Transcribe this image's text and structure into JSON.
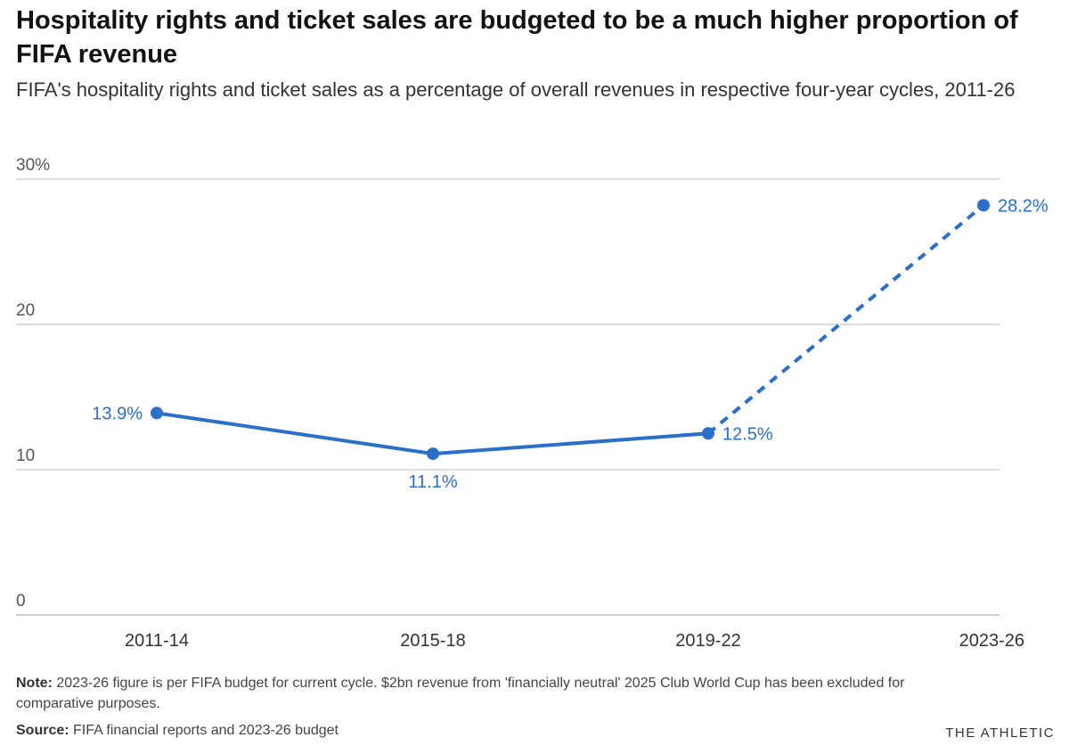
{
  "chart_data": {
    "type": "line",
    "title": "Hospitality rights and ticket sales are budgeted to be a much higher proportion of FIFA revenue",
    "subtitle": "FIFA's hospitality rights and ticket sales as a percentage of overall revenues in respective four-year cycles, 2011-26",
    "categories": [
      "2011-14",
      "2015-18",
      "2019-22",
      "2023-26"
    ],
    "values": [
      13.9,
      11.1,
      12.5,
      28.2
    ],
    "data_labels": [
      "13.9%",
      "11.1%",
      "12.5%",
      "28.2%"
    ],
    "projected_from_index": 2,
    "ylim": [
      0,
      30
    ],
    "yticks": [
      0,
      10,
      20,
      30
    ],
    "ytick_labels": [
      "0",
      "10",
      "20",
      "30%"
    ],
    "grid": true,
    "line_color": "#2a6fc9",
    "legend": "none"
  },
  "footer": {
    "note_label": "Note:",
    "note_text": " 2023-26 figure is per FIFA budget for current cycle. $2bn revenue from 'financially neutral' 2025 Club World Cup has been excluded for comparative purposes.",
    "source_label": "Source:",
    "source_text": " FIFA financial reports and 2023-26 budget",
    "brand": "THE ATHLETIC"
  }
}
